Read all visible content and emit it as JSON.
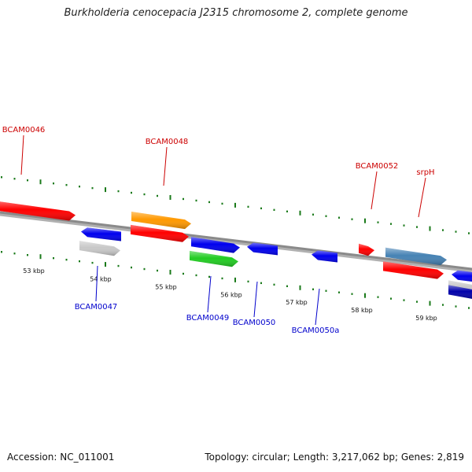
{
  "title": "Burkholderia cenocepacia J2315 chromosome 2, complete genome",
  "footer": {
    "accession": "Accession: NC_011001",
    "stats": "Topology: circular; Length: 3,217,062 bp; Genes: 2,819"
  },
  "colors": {
    "forward_label": "#cc0000",
    "reverse_label": "#0000cc",
    "backbone": "#8a8a8a",
    "tick": "#1a7a1a"
  },
  "ticks": [
    {
      "label": "53 kbp"
    },
    {
      "label": "54 kbp"
    },
    {
      "label": "55 kbp"
    },
    {
      "label": "56 kbp"
    },
    {
      "label": "57 kbp"
    },
    {
      "label": "58 kbp"
    },
    {
      "label": "59 kbp"
    }
  ],
  "forward_labels": [
    {
      "text": "BCAM0046"
    },
    {
      "text": "BCAM0048"
    },
    {
      "text": "BCAM0052"
    },
    {
      "text": "srpH"
    }
  ],
  "reverse_labels": [
    {
      "text": "BCAM0047"
    },
    {
      "text": "BCAM0049"
    },
    {
      "text": "BCAM0050"
    },
    {
      "text": "BCAM0050a"
    }
  ],
  "genes": [
    {
      "color": "#ff0000"
    },
    {
      "color": "#ff9900"
    },
    {
      "color": "#ff0000"
    },
    {
      "color": "#0000ee"
    },
    {
      "color": "#c8c8c8"
    },
    {
      "color": "#0000ee"
    },
    {
      "color": "#22cc22"
    },
    {
      "color": "#0000ee"
    },
    {
      "color": "#0000ee"
    },
    {
      "color": "#ff0000"
    },
    {
      "color": "#4682b4"
    },
    {
      "color": "#ff0000"
    },
    {
      "color": "#0000ee"
    },
    {
      "color": "#c8c8c8"
    },
    {
      "color": "#0000aa"
    }
  ]
}
